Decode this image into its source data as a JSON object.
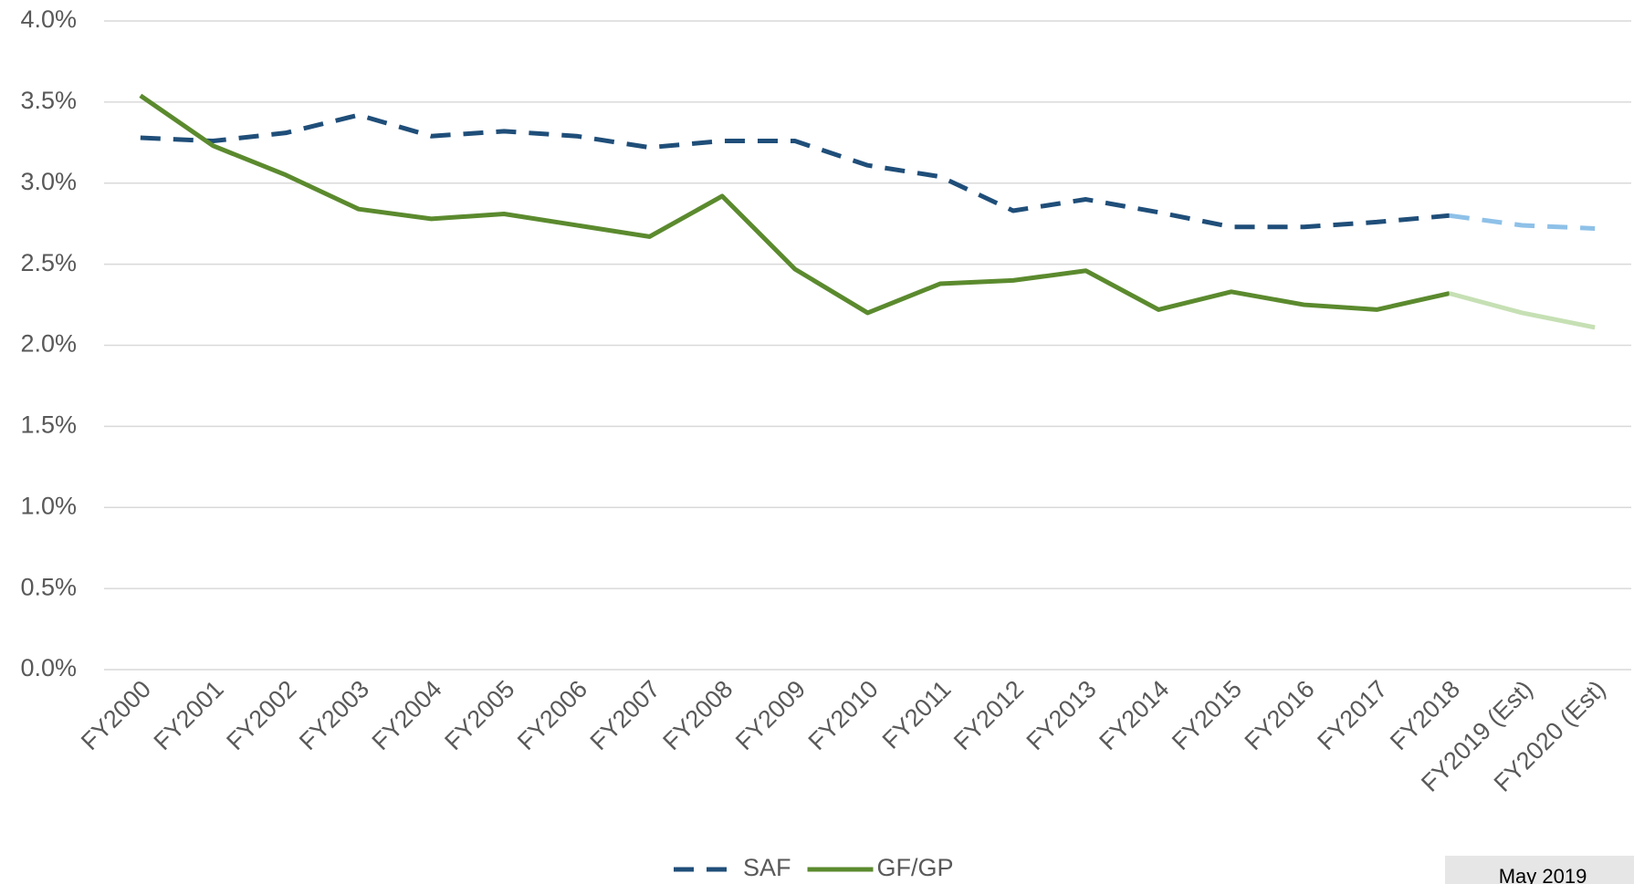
{
  "chart_data": {
    "type": "line",
    "annotation": "May 2019",
    "categories": [
      "FY2000",
      "FY2001",
      "FY2002",
      "FY2003",
      "FY2004",
      "FY2005",
      "FY2006",
      "FY2007",
      "FY2008",
      "FY2009",
      "FY2010",
      "FY2011",
      "FY2012",
      "FY2013",
      "FY2014",
      "FY2015",
      "FY2016",
      "FY2017",
      "FY2018",
      "FY2019 (Est)",
      "FY2020 (Est)"
    ],
    "series": [
      {
        "name": "SAF",
        "color": "#1f4e79",
        "dashed": true,
        "line_colors": [
          "#1f4e79",
          "#1f4e79",
          "#1f4e79",
          "#1f4e79",
          "#1f4e79",
          "#1f4e79",
          "#1f4e79",
          "#1f4e79",
          "#1f4e79",
          "#1f4e79",
          "#1f4e79",
          "#1f4e79",
          "#1f4e79",
          "#1f4e79",
          "#1f4e79",
          "#1f4e79",
          "#1f4e79",
          "#1f4e79",
          "#1f4e79",
          "#8ec1e8",
          "#8ec1e8"
        ],
        "values": [
          3.28,
          3.26,
          3.31,
          3.42,
          3.29,
          3.32,
          3.29,
          3.22,
          3.26,
          3.26,
          3.11,
          3.04,
          2.83,
          2.9,
          2.82,
          2.73,
          2.73,
          2.76,
          2.8,
          2.74,
          2.72
        ]
      },
      {
        "name": "GF/GP",
        "color": "#5b8a2e",
        "dashed": false,
        "line_colors": [
          "#5b8a2e",
          "#5b8a2e",
          "#5b8a2e",
          "#5b8a2e",
          "#5b8a2e",
          "#5b8a2e",
          "#5b8a2e",
          "#5b8a2e",
          "#5b8a2e",
          "#5b8a2e",
          "#5b8a2e",
          "#5b8a2e",
          "#5b8a2e",
          "#5b8a2e",
          "#5b8a2e",
          "#5b8a2e",
          "#5b8a2e",
          "#5b8a2e",
          "#5b8a2e",
          "#c6e0b4",
          "#c6e0b4"
        ],
        "values": [
          3.54,
          3.23,
          3.05,
          2.84,
          2.78,
          2.81,
          2.74,
          2.67,
          2.92,
          2.47,
          2.2,
          2.38,
          2.4,
          2.46,
          2.22,
          2.33,
          2.25,
          2.22,
          2.32,
          2.2,
          2.11
        ]
      }
    ],
    "ylim": [
      0,
      4
    ],
    "yticks": [
      {
        "value": 0,
        "label": "0.0%"
      },
      {
        "value": 0.5,
        "label": "0.5%"
      },
      {
        "value": 1,
        "label": "1.0%"
      },
      {
        "value": 1.5,
        "label": "1.5%"
      },
      {
        "value": 2,
        "label": "2.0%"
      },
      {
        "value": 2.5,
        "label": "2.5%"
      },
      {
        "value": 3,
        "label": "3.0%"
      },
      {
        "value": 3.5,
        "label": "3.5%"
      },
      {
        "value": 4,
        "label": "4.0%"
      }
    ],
    "grid": true,
    "legend": "bottom"
  }
}
